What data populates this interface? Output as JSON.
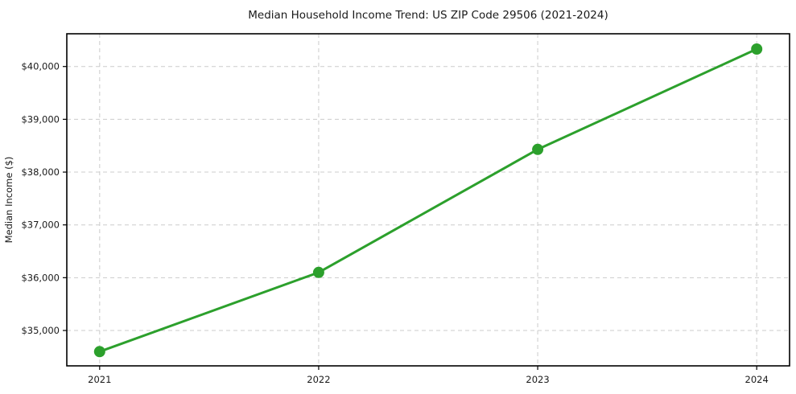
{
  "figure": {
    "background": "#ffffff"
  },
  "chart_data": {
    "type": "line",
    "title": "Median Household Income Trend: US ZIP Code 29506 (2021-2024)",
    "xlabel": "",
    "ylabel": "Median Income ($)",
    "categories": [
      "2021",
      "2022",
      "2023",
      "2024"
    ],
    "series": [
      {
        "name": "Median Income",
        "values": [
          34600,
          36100,
          38430,
          40330
        ],
        "color": "#2ca02c",
        "marker": "circle"
      }
    ],
    "ylim": [
      34330,
      40620
    ],
    "x_margin_fraction": 0.05,
    "y_ticks": [
      35000,
      36000,
      37000,
      38000,
      39000,
      40000
    ],
    "y_tick_labels": [
      "$35,000",
      "$36,000",
      "$37,000",
      "$38,000",
      "$39,000",
      "$40,000"
    ],
    "grid": true,
    "grid_style": "dashed",
    "grid_color": "#cccccc",
    "axis_color": "#000000",
    "legend_position": "none"
  }
}
